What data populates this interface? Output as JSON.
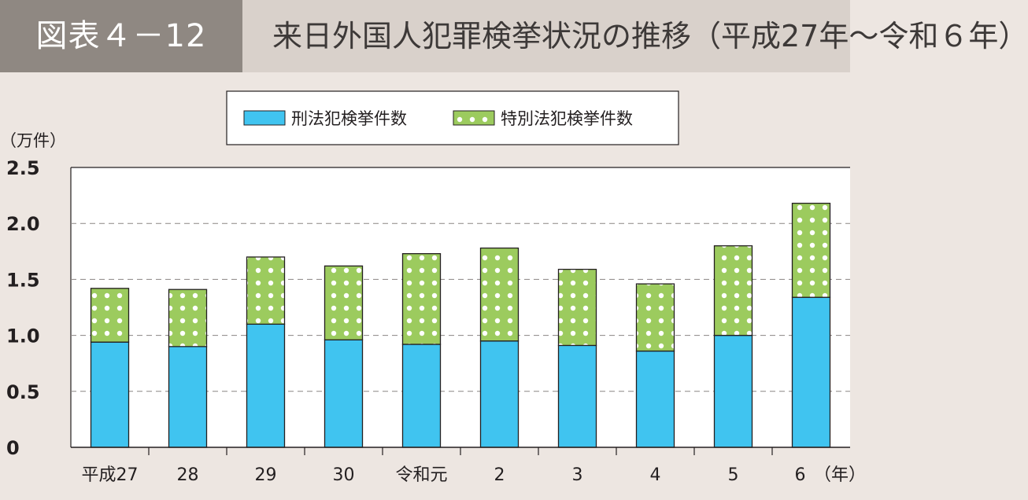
{
  "header": {
    "figure_label": "図表４－12",
    "title": "来日外国人犯罪検挙状況の推移（平成27年～令和６年）"
  },
  "colors": {
    "penal": "#40c4f0",
    "special": "#9ccb5e",
    "dot": "#ffffff"
  },
  "chart_data": {
    "type": "bar",
    "stacked": true,
    "categories": [
      "平成27",
      "28",
      "29",
      "30",
      "令和元",
      "2",
      "3",
      "4",
      "5",
      "6"
    ],
    "series": [
      {
        "name": "刑法犯検挙件数",
        "values": [
          0.94,
          0.9,
          1.1,
          0.96,
          0.92,
          0.95,
          0.91,
          0.86,
          1.0,
          1.34
        ]
      },
      {
        "name": "特別法犯検挙件数",
        "values": [
          0.48,
          0.51,
          0.6,
          0.66,
          0.81,
          0.83,
          0.68,
          0.6,
          0.8,
          0.84
        ]
      }
    ],
    "ylim": [
      0,
      2.5
    ],
    "yticks": [
      "0",
      "0.5",
      "1.0",
      "1.5",
      "2.0",
      "2.5"
    ],
    "ytick_values": [
      0,
      0.5,
      1.0,
      1.5,
      2.0,
      2.5
    ],
    "ylabel": "（万件）",
    "xlabel": "（年）",
    "grid": true,
    "legend_position": "top-center"
  }
}
